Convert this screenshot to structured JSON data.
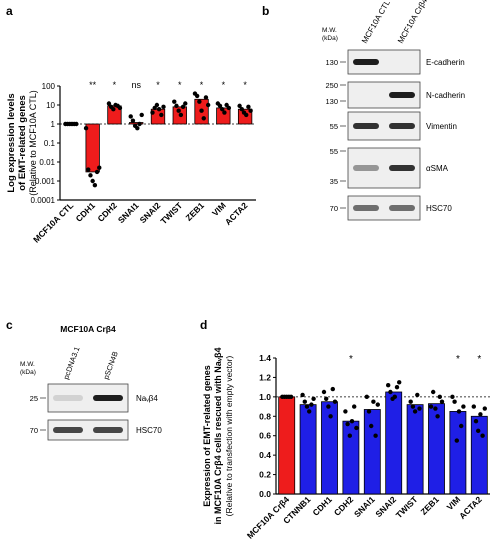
{
  "panels": {
    "a": "a",
    "b": "b",
    "c": "c",
    "d": "d"
  },
  "chart_data": [
    {
      "type": "bar",
      "panel": "a",
      "ylabel_line1": "Log expression levels",
      "ylabel_line2": "of EMT-related genes",
      "ylabel_line3": "(Relative to MCF10A CTL)",
      "yscale": "log",
      "ylim": [
        0.0001,
        100
      ],
      "yticks": [
        "100",
        "10",
        "1",
        "0.1",
        "0.01",
        "0.001",
        "0.0001"
      ],
      "categories": [
        "MCF10A CTL",
        "CDH1",
        "CDH2",
        "SNAI1",
        "SNAI2",
        "TWIST",
        "ZEB1",
        "VIM",
        "ACTA2"
      ],
      "values": [
        1,
        0.003,
        9,
        1.2,
        6,
        8,
        20,
        7,
        6
      ],
      "significance": [
        "",
        "**",
        "*",
        "ns",
        "*",
        "*",
        "*",
        "*",
        "*"
      ],
      "points": [
        [
          1,
          1,
          1,
          1,
          1,
          1
        ],
        [
          0.6,
          0.004,
          0.002,
          0.001,
          0.0006,
          0.003,
          0.005
        ],
        [
          12,
          8,
          6,
          10,
          9,
          7
        ],
        [
          2.5,
          1.5,
          0.8,
          0.6,
          1,
          3
        ],
        [
          4,
          7,
          10,
          6,
          3,
          8
        ],
        [
          15,
          9,
          5,
          3,
          8,
          12
        ],
        [
          40,
          30,
          15,
          5,
          2,
          25,
          10
        ],
        [
          12,
          9,
          6,
          4,
          10,
          7
        ],
        [
          9,
          6,
          4,
          3,
          8,
          5
        ]
      ]
    },
    {
      "type": "bar",
      "panel": "d",
      "ylabel_line1": "Expression of EMT-related genes",
      "ylabel_line2": "in MCF10A Crβ4 cells rescued with Naᵥβ4",
      "ylabel_line3": "(Relative to transfection with empty vector)",
      "ylim": [
        0,
        1.4
      ],
      "yticks": [
        "0.0",
        "0.2",
        "0.4",
        "0.6",
        "0.8",
        "1.0",
        "1.2",
        "1.4"
      ],
      "categories": [
        "MCF10A Crβ4",
        "CTNNB1",
        "CDH1",
        "CDH2",
        "SNAI1",
        "SNAI2",
        "TWIST",
        "ZEB1",
        "VIM",
        "ACTA2"
      ],
      "values": [
        1.0,
        0.92,
        0.95,
        0.75,
        0.87,
        1.05,
        0.92,
        0.93,
        0.85,
        0.8
      ],
      "significance": [
        "",
        "",
        "",
        "*",
        "",
        "",
        "",
        "",
        "*",
        "*"
      ],
      "points": [
        [
          1,
          1,
          1,
          1,
          1
        ],
        [
          1.02,
          0.95,
          0.9,
          0.85,
          0.92,
          0.98
        ],
        [
          1.05,
          0.98,
          0.9,
          0.8,
          1.08,
          0.95
        ],
        [
          0.85,
          0.72,
          0.6,
          0.75,
          0.9,
          0.68
        ],
        [
          1.0,
          0.85,
          0.7,
          0.95,
          0.6,
          0.92
        ],
        [
          1.12,
          1.05,
          0.98,
          1.0,
          1.1,
          1.15
        ],
        [
          0.95,
          0.9,
          0.85,
          1.02,
          0.88
        ],
        [
          0.9,
          1.05,
          0.88,
          0.8,
          1.0,
          0.95
        ],
        [
          1.0,
          0.95,
          0.55,
          0.85,
          0.7,
          0.9
        ],
        [
          0.9,
          0.75,
          0.65,
          0.82,
          0.6,
          0.88
        ]
      ]
    }
  ],
  "blot_b": {
    "mw_header": "M.W.\n(kDa)",
    "mw_header_line1": "M.W.",
    "mw_header_line2": "(kDa)",
    "lanes": [
      "MCF10A CTL",
      "MCF10A Crβ4"
    ],
    "rows": [
      {
        "label": "E-cadherin",
        "mw": [
          "130"
        ],
        "bands": [
          1,
          0
        ]
      },
      {
        "label": "N-cadherin",
        "mw": [
          "250",
          "130"
        ],
        "bands": [
          0,
          1
        ]
      },
      {
        "label": "Vimentin",
        "mw": [
          "55"
        ],
        "bands": [
          0.9,
          0.9
        ]
      },
      {
        "label": "αSMA",
        "mw": [
          "55",
          "35"
        ],
        "bands": [
          0.4,
          0.9
        ]
      },
      {
        "label": "HSC70",
        "mw": [
          "70"
        ],
        "bands": [
          0.6,
          0.6
        ]
      }
    ]
  },
  "blot_c": {
    "title": "MCF10A Crβ4",
    "mw_header_line1": "M.W.",
    "mw_header_line2": "(kDa)",
    "lanes": [
      "pcDNA3.1",
      "pSCN4B"
    ],
    "rows": [
      {
        "label": "Naᵥβ4",
        "mw": [
          "25"
        ],
        "bands": [
          0.1,
          1
        ]
      },
      {
        "label": "HSC70",
        "mw": [
          "70"
        ],
        "bands": [
          0.8,
          0.8
        ]
      }
    ]
  },
  "colors": {
    "bar_a": "#ee1c1c",
    "bar_d_ctrl": "#ee1c1c",
    "bar_d": "#1f1fe6",
    "point": "#000000"
  }
}
